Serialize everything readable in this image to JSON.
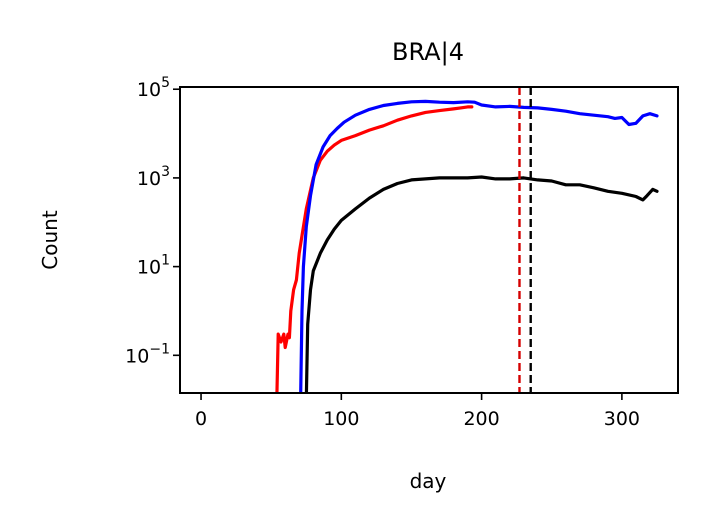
{
  "chart_data": {
    "type": "line",
    "title": "BRA|4",
    "xlabel": "day",
    "ylabel": "Count",
    "xlim": [
      -15,
      340
    ],
    "ylim_log10": [
      -1.85,
      5.05
    ],
    "yscale": "log",
    "x_ticks": [
      0,
      100,
      200,
      300
    ],
    "x_tick_labels": [
      "0",
      "100",
      "200",
      "300"
    ],
    "y_ticks_log10": [
      -1,
      1,
      3,
      5
    ],
    "y_tick_bases": [
      "10",
      "10",
      "10",
      "10"
    ],
    "y_tick_exponents": [
      "−1",
      "1",
      "3",
      "5"
    ],
    "grid": false,
    "series": [
      {
        "color": "#ff0000",
        "points": [
          [
            -2,
            0.01
          ],
          [
            30,
            0.01
          ],
          [
            54,
            0.01
          ],
          [
            55,
            0.3
          ],
          [
            57,
            0.2
          ],
          [
            59,
            0.3
          ],
          [
            60,
            0.15
          ],
          [
            62,
            0.3
          ],
          [
            63,
            0.25
          ],
          [
            64,
            1
          ],
          [
            66,
            3
          ],
          [
            68,
            5
          ],
          [
            70,
            20
          ],
          [
            72,
            50
          ],
          [
            75,
            200
          ],
          [
            80,
            1000
          ],
          [
            85,
            2500
          ],
          [
            90,
            4000
          ],
          [
            95,
            5500
          ],
          [
            100,
            7000
          ],
          [
            110,
            9000
          ],
          [
            120,
            12000
          ],
          [
            130,
            15000
          ],
          [
            140,
            20000
          ],
          [
            150,
            25000
          ],
          [
            160,
            30000
          ],
          [
            170,
            33000
          ],
          [
            180,
            36000
          ],
          [
            185,
            38000
          ],
          [
            190,
            40000
          ],
          [
            193,
            40000
          ]
        ]
      },
      {
        "color": "#0000ff",
        "points": [
          [
            -2,
            0.01
          ],
          [
            50,
            0.01
          ],
          [
            70,
            0.01
          ],
          [
            71,
            0.01
          ],
          [
            72,
            1
          ],
          [
            73,
            10
          ],
          [
            75,
            80
          ],
          [
            78,
            400
          ],
          [
            82,
            2000
          ],
          [
            87,
            5000
          ],
          [
            92,
            9000
          ],
          [
            97,
            13000
          ],
          [
            102,
            18000
          ],
          [
            110,
            26000
          ],
          [
            120,
            35000
          ],
          [
            130,
            43000
          ],
          [
            140,
            48000
          ],
          [
            150,
            52000
          ],
          [
            160,
            53000
          ],
          [
            170,
            51000
          ],
          [
            180,
            50000
          ],
          [
            190,
            52000
          ],
          [
            195,
            51000
          ],
          [
            200,
            44000
          ],
          [
            210,
            40000
          ],
          [
            220,
            41000
          ],
          [
            230,
            39000
          ],
          [
            240,
            38000
          ],
          [
            250,
            35000
          ],
          [
            260,
            32000
          ],
          [
            270,
            28000
          ],
          [
            280,
            26000
          ],
          [
            290,
            24000
          ],
          [
            295,
            22000
          ],
          [
            300,
            23000
          ],
          [
            305,
            16000
          ],
          [
            310,
            17000
          ],
          [
            315,
            25000
          ],
          [
            320,
            28000
          ],
          [
            325,
            25000
          ]
        ]
      },
      {
        "color": "#000000",
        "points": [
          [
            -2,
            0.01
          ],
          [
            70,
            0.01
          ],
          [
            74,
            0.01
          ],
          [
            75,
            0.01
          ],
          [
            76,
            0.5
          ],
          [
            78,
            3
          ],
          [
            80,
            8
          ],
          [
            85,
            20
          ],
          [
            90,
            40
          ],
          [
            95,
            70
          ],
          [
            100,
            110
          ],
          [
            110,
            200
          ],
          [
            120,
            350
          ],
          [
            130,
            550
          ],
          [
            140,
            750
          ],
          [
            150,
            900
          ],
          [
            160,
            950
          ],
          [
            170,
            1000
          ],
          [
            180,
            1000
          ],
          [
            190,
            1000
          ],
          [
            200,
            1050
          ],
          [
            210,
            950
          ],
          [
            220,
            950
          ],
          [
            230,
            1000
          ],
          [
            240,
            900
          ],
          [
            250,
            850
          ],
          [
            260,
            700
          ],
          [
            270,
            700
          ],
          [
            280,
            600
          ],
          [
            290,
            500
          ],
          [
            300,
            450
          ],
          [
            310,
            380
          ],
          [
            315,
            320
          ],
          [
            318,
            400
          ],
          [
            322,
            550
          ],
          [
            325,
            500
          ]
        ]
      }
    ],
    "vlines": [
      {
        "x": 227,
        "color": "#d40000",
        "style": "dashed"
      },
      {
        "x": 235,
        "color": "#000000",
        "style": "dashed"
      }
    ]
  }
}
